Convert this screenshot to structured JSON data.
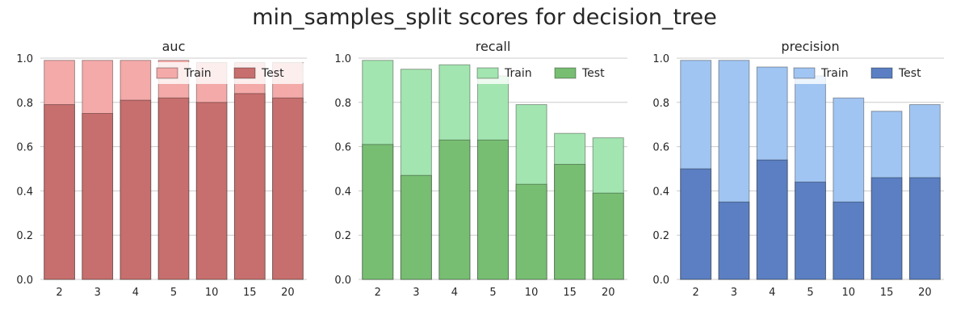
{
  "title": "min_samples_split scores for decision_tree",
  "chart_data": [
    {
      "type": "bar",
      "title": "auc",
      "categories": [
        "2",
        "3",
        "4",
        "5",
        "10",
        "15",
        "20"
      ],
      "ylim": [
        0,
        1.0
      ],
      "yticks": [
        "0.0",
        "0.2",
        "0.4",
        "0.6",
        "0.8",
        "1.0"
      ],
      "grid": true,
      "legend_position": "top-right",
      "series": [
        {
          "name": "Train",
          "color": "#f3aaa8",
          "values": [
            0.99,
            0.99,
            0.99,
            0.99,
            0.98,
            0.98,
            0.98
          ]
        },
        {
          "name": "Test",
          "color": "#c76f6e",
          "values": [
            0.79,
            0.75,
            0.81,
            0.82,
            0.8,
            0.84,
            0.82
          ]
        }
      ]
    },
    {
      "type": "bar",
      "title": "recall",
      "categories": [
        "2",
        "3",
        "4",
        "5",
        "10",
        "15",
        "20"
      ],
      "ylim": [
        0,
        1.0
      ],
      "yticks": [
        "0.0",
        "0.2",
        "0.4",
        "0.6",
        "0.8",
        "1.0"
      ],
      "grid": true,
      "legend_position": "top-right",
      "series": [
        {
          "name": "Train",
          "color": "#a3e5b0",
          "values": [
            0.99,
            0.95,
            0.97,
            0.92,
            0.79,
            0.66,
            0.64
          ]
        },
        {
          "name": "Test",
          "color": "#77be72",
          "values": [
            0.61,
            0.47,
            0.63,
            0.63,
            0.43,
            0.52,
            0.39
          ]
        }
      ]
    },
    {
      "type": "bar",
      "title": "precision",
      "categories": [
        "2",
        "3",
        "4",
        "5",
        "10",
        "15",
        "20"
      ],
      "ylim": [
        0,
        1.0
      ],
      "yticks": [
        "0.0",
        "0.2",
        "0.4",
        "0.6",
        "0.8",
        "1.0"
      ],
      "grid": true,
      "legend_position": "top-right",
      "series": [
        {
          "name": "Train",
          "color": "#a1c5f2",
          "values": [
            0.99,
            0.99,
            0.96,
            0.92,
            0.82,
            0.76,
            0.79
          ]
        },
        {
          "name": "Test",
          "color": "#5b7fc2",
          "values": [
            0.5,
            0.35,
            0.54,
            0.44,
            0.35,
            0.46,
            0.46
          ]
        }
      ]
    }
  ]
}
